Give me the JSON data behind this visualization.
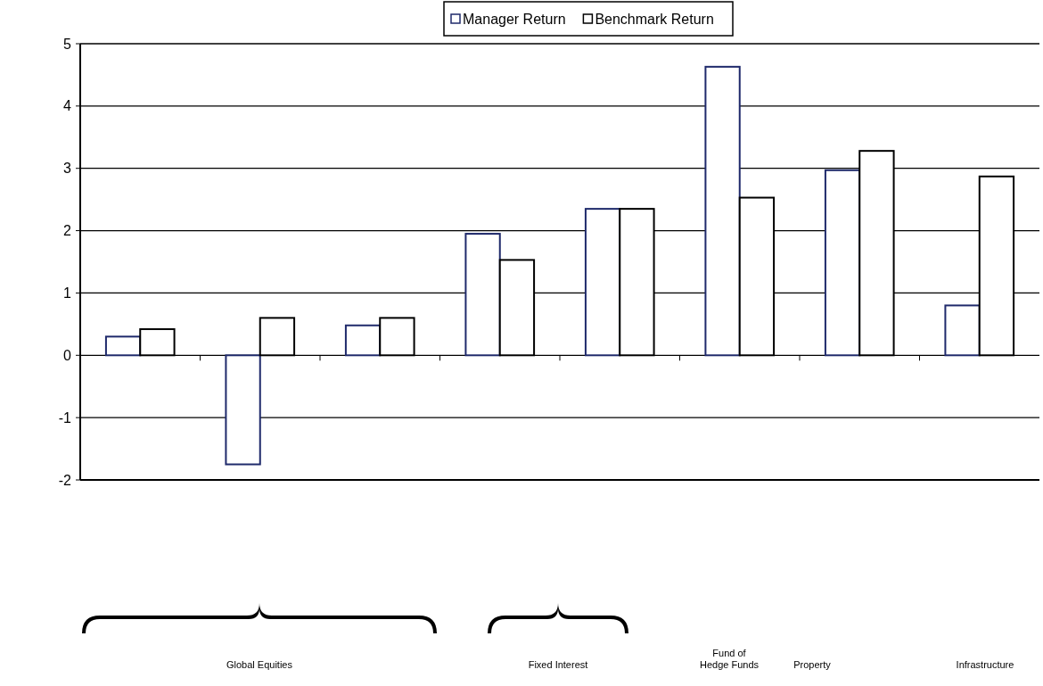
{
  "chart_data": {
    "type": "bar",
    "categories": [
      null,
      null,
      null,
      null,
      null,
      null,
      null,
      null
    ],
    "series": [
      {
        "name": "Manager Return",
        "color": "#1f2a6b",
        "values": [
          0.3,
          -1.75,
          0.48,
          1.95,
          2.35,
          4.63,
          2.97,
          0.8
        ]
      },
      {
        "name": "Benchmark Return",
        "color": "#000000",
        "values": [
          0.42,
          0.6,
          0.6,
          1.53,
          2.35,
          2.53,
          3.28,
          2.87
        ]
      }
    ],
    "ylim": [
      -2,
      5
    ],
    "yticks": [
      -2,
      -1,
      0,
      1,
      2,
      3,
      4,
      5
    ],
    "grid": "y",
    "legend": "top",
    "annotations": [
      "Global Equities",
      "Fixed Interest",
      "Fund of Hedge Funds",
      "Property",
      "Infrastructure"
    ]
  }
}
